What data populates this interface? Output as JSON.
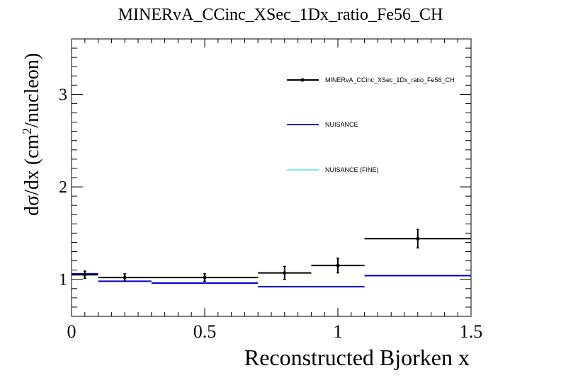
{
  "chart_data": {
    "type": "line",
    "title": "MINERvA_CCinc_XSec_1Dx_ratio_Fe56_CH",
    "xlabel": "Reconstructed Bjorken x",
    "ylabel_main": "dσ/dx (cm",
    "ylabel_sup": "2",
    "ylabel_tail": "/nucleon)",
    "xlim": [
      0,
      1.5
    ],
    "ylim": [
      0.6,
      3.6
    ],
    "xticks": [
      {
        "v": 0,
        "label": "0"
      },
      {
        "v": 0.5,
        "label": "0.5"
      },
      {
        "v": 1,
        "label": "1"
      },
      {
        "v": 1.5,
        "label": "1.5"
      }
    ],
    "yticks": [
      {
        "v": 1,
        "label": "1"
      },
      {
        "v": 2,
        "label": "2"
      },
      {
        "v": 3,
        "label": "3"
      }
    ],
    "legend_position": "top-right",
    "series": [
      {
        "name": "MINERvA_CCinc_XSec_1Dx_ratio_Fe56_CH",
        "kind": "data",
        "color": "#000000",
        "points": [
          {
            "xlo": 0.0,
            "xhi": 0.1,
            "x": 0.05,
            "y": 1.05,
            "err": 0.04
          },
          {
            "xlo": 0.1,
            "xhi": 0.3,
            "x": 0.2,
            "y": 1.02,
            "err": 0.04
          },
          {
            "xlo": 0.3,
            "xhi": 0.7,
            "x": 0.5,
            "y": 1.02,
            "err": 0.04
          },
          {
            "xlo": 0.7,
            "xhi": 0.9,
            "x": 0.8,
            "y": 1.07,
            "err": 0.07
          },
          {
            "xlo": 0.9,
            "xhi": 1.1,
            "x": 1.0,
            "y": 1.15,
            "err": 0.08
          },
          {
            "xlo": 1.1,
            "xhi": 1.5,
            "x": 1.3,
            "y": 1.44,
            "err": 0.1
          }
        ]
      },
      {
        "name": "NUISANCE",
        "kind": "hist",
        "color": "#0000cc",
        "bins": [
          {
            "xlo": 0.0,
            "xhi": 0.1,
            "y": 1.06
          },
          {
            "xlo": 0.1,
            "xhi": 0.3,
            "y": 0.98
          },
          {
            "xlo": 0.3,
            "xhi": 0.7,
            "y": 0.96
          },
          {
            "xlo": 0.7,
            "xhi": 0.9,
            "y": 0.92
          },
          {
            "xlo": 0.9,
            "xhi": 1.1,
            "y": 0.92
          },
          {
            "xlo": 1.1,
            "xhi": 1.5,
            "y": 1.04
          }
        ]
      },
      {
        "name": "NUISANCE (FINE)",
        "kind": "line",
        "color": "#00cccc",
        "points": []
      }
    ]
  }
}
